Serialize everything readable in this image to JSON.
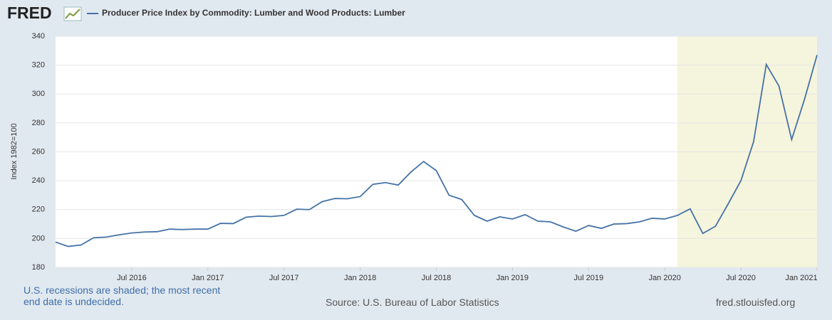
{
  "logo": "FRED",
  "chart_data": {
    "type": "line",
    "title": "Producer Price Index by Commodity: Lumber and Wood Products: Lumber",
    "y_label": "Index 1982=100",
    "x": [
      "2016-01",
      "2016-02",
      "2016-03",
      "2016-04",
      "2016-05",
      "2016-06",
      "2016-07",
      "2016-08",
      "2016-09",
      "2016-10",
      "2016-11",
      "2016-12",
      "2017-01",
      "2017-02",
      "2017-03",
      "2017-04",
      "2017-05",
      "2017-06",
      "2017-07",
      "2017-08",
      "2017-09",
      "2017-10",
      "2017-11",
      "2017-12",
      "2018-01",
      "2018-02",
      "2018-03",
      "2018-04",
      "2018-05",
      "2018-06",
      "2018-07",
      "2018-08",
      "2018-09",
      "2018-10",
      "2018-11",
      "2018-12",
      "2019-01",
      "2019-02",
      "2019-03",
      "2019-04",
      "2019-05",
      "2019-06",
      "2019-07",
      "2019-08",
      "2019-09",
      "2019-10",
      "2019-11",
      "2019-12",
      "2020-01",
      "2020-02",
      "2020-03",
      "2020-04",
      "2020-05",
      "2020-06",
      "2020-07",
      "2020-08",
      "2020-09",
      "2020-10",
      "2020-11",
      "2020-12",
      "2021-01"
    ],
    "series": [
      {
        "name": "Producer Price Index by Commodity: Lumber and Wood Products: Lumber",
        "color": "#4572a7",
        "values": [
          197.5,
          194.5,
          195.5,
          200.5,
          201,
          202.5,
          203.8,
          204.5,
          204.7,
          206.5,
          206.2,
          206.5,
          206.5,
          210.5,
          210.3,
          214.7,
          215.5,
          215.2,
          216,
          220.3,
          220,
          225.5,
          227.7,
          227.5,
          229,
          237.5,
          238.7,
          237,
          246,
          253.3,
          247,
          230,
          227,
          216,
          212,
          215,
          213.5,
          216.5,
          212,
          211.5,
          208,
          205,
          209,
          207,
          210,
          210.3,
          211.5,
          214,
          213.5,
          216,
          220.5,
          203.5,
          208.5,
          224,
          240,
          267,
          320.5,
          305.5,
          268.5,
          296,
          327
        ]
      }
    ],
    "recession_start": "2020-02",
    "recession_color": "#f5f4dc",
    "ylim": [
      180,
      340
    ],
    "yticks": [
      180,
      200,
      220,
      240,
      260,
      280,
      300,
      320,
      340
    ],
    "xticks": [
      {
        "value": "2016-07",
        "label": "Jul 2016"
      },
      {
        "value": "2017-01",
        "label": "Jan 2017"
      },
      {
        "value": "2017-07",
        "label": "Jul 2017"
      },
      {
        "value": "2018-01",
        "label": "Jan 2018"
      },
      {
        "value": "2018-07",
        "label": "Jul 2018"
      },
      {
        "value": "2019-01",
        "label": "Jan 2019"
      },
      {
        "value": "2019-07",
        "label": "Jul 2019"
      },
      {
        "value": "2020-01",
        "label": "Jan 2020"
      },
      {
        "value": "2020-07",
        "label": "Jul 2020"
      },
      {
        "value": "2021-01",
        "label": "Jan 2021"
      }
    ],
    "grid": true,
    "note": "U.S. recessions are shaded; the most recent end date is undecided.",
    "source": "Source: U.S. Bureau of Labor Statistics",
    "url": "fred.stlouisfed.org"
  }
}
